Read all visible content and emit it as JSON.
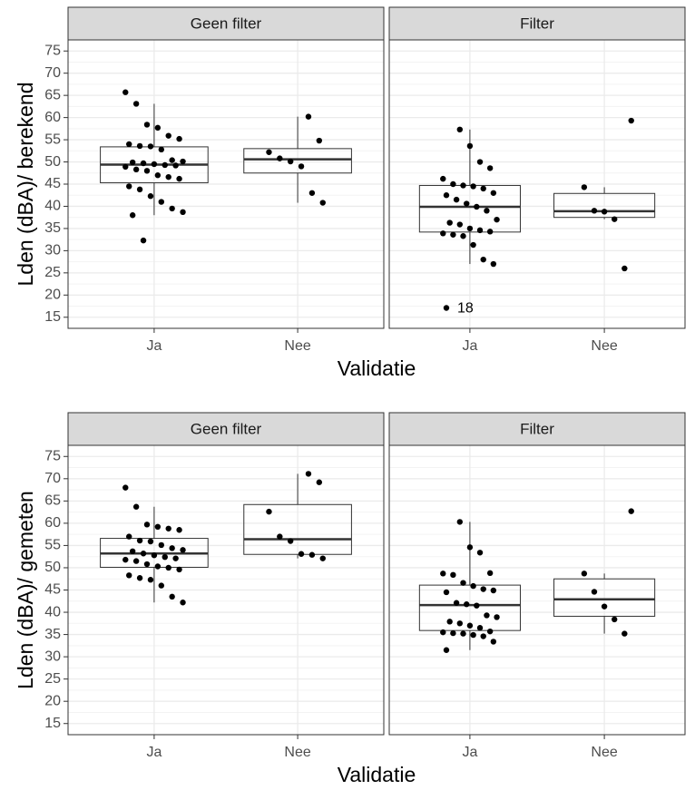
{
  "chart_data": [
    {
      "type": "box",
      "ylabel": "Lden (dBA)/ berekend",
      "xlabel": "Validatie",
      "ylim": [
        12.5,
        77.5
      ],
      "yticks": [
        15,
        20,
        25,
        30,
        35,
        40,
        45,
        50,
        55,
        60,
        65,
        70,
        75
      ],
      "grid": true,
      "facets": [
        {
          "title": "Geen filter",
          "categories": [
            "Ja",
            "Nee"
          ],
          "groups": [
            {
              "q1": 45.3,
              "median": 49.4,
              "q3": 53.4,
              "whisker_low": 38.0,
              "whisker_high": 63.1,
              "values": [
                65.7,
                63.1,
                58.4,
                57.7,
                55.9,
                55.2,
                54.0,
                53.6,
                53.5,
                52.8,
                50.4,
                50.1,
                49.9,
                49.7,
                49.5,
                49.3,
                49.2,
                48.9,
                48.3,
                48.0,
                47.0,
                46.6,
                46.2,
                44.5,
                43.8,
                42.3,
                41.0,
                39.5,
                38.7,
                38.0,
                32.3
              ]
            },
            {
              "q1": 47.5,
              "median": 50.6,
              "q3": 53.0,
              "whisker_low": 40.8,
              "whisker_high": 60.2,
              "values": [
                60.2,
                54.8,
                52.2,
                50.8,
                50.1,
                49.0,
                43.0,
                40.8
              ]
            }
          ]
        },
        {
          "title": "Filter",
          "categories": [
            "Ja",
            "Nee"
          ],
          "groups": [
            {
              "q1": 34.2,
              "median": 39.9,
              "q3": 44.7,
              "whisker_low": 27.0,
              "whisker_high": 57.3,
              "values": [
                57.3,
                53.6,
                50.0,
                48.6,
                46.2,
                45.0,
                44.7,
                44.5,
                44.0,
                43.0,
                42.5,
                41.5,
                40.6,
                39.9,
                39.0,
                37.0,
                36.3,
                35.9,
                35.0,
                34.6,
                34.3,
                33.9,
                33.6,
                33.3,
                31.3,
                28.0,
                27.0,
                17.1
              ],
              "point_labels": {
                "27": "18"
              }
            },
            {
              "q1": 37.5,
              "median": 38.9,
              "q3": 42.9,
              "whisker_low": 37.1,
              "whisker_high": 44.3,
              "values": [
                59.3,
                44.3,
                39.0,
                38.8,
                37.1,
                26.0
              ]
            }
          ]
        }
      ]
    },
    {
      "type": "box",
      "ylabel": "Lden (dBA)/ gemeten",
      "xlabel": "Validatie",
      "ylim": [
        12.5,
        77.5
      ],
      "yticks": [
        15,
        20,
        25,
        30,
        35,
        40,
        45,
        50,
        55,
        60,
        65,
        70,
        75
      ],
      "grid": true,
      "facets": [
        {
          "title": "Geen filter",
          "categories": [
            "Ja",
            "Nee"
          ],
          "groups": [
            {
              "q1": 50.1,
              "median": 53.2,
              "q3": 56.6,
              "whisker_low": 42.2,
              "whisker_high": 63.7,
              "values": [
                68.0,
                63.7,
                59.7,
                59.2,
                58.8,
                58.5,
                57.0,
                56.1,
                55.9,
                55.1,
                54.4,
                54.0,
                53.7,
                53.2,
                52.8,
                52.4,
                52.1,
                51.8,
                51.5,
                50.8,
                50.3,
                50.0,
                49.6,
                48.3,
                47.7,
                47.3,
                46.0,
                43.5,
                42.2
              ]
            },
            {
              "q1": 53.0,
              "median": 56.4,
              "q3": 64.2,
              "whisker_low": 52.1,
              "whisker_high": 71.1,
              "values": [
                71.1,
                69.2,
                62.6,
                57.0,
                56.0,
                53.1,
                52.9,
                52.1
              ]
            }
          ]
        },
        {
          "title": "Filter",
          "categories": [
            "Ja",
            "Nee"
          ],
          "groups": [
            {
              "q1": 35.9,
              "median": 41.6,
              "q3": 46.1,
              "whisker_low": 31.5,
              "whisker_high": 60.3,
              "values": [
                60.3,
                54.6,
                53.4,
                48.8,
                48.7,
                48.4,
                46.6,
                45.9,
                45.2,
                44.9,
                44.5,
                42.1,
                41.8,
                41.5,
                39.3,
                38.9,
                37.9,
                37.5,
                37.0,
                36.5,
                35.7,
                35.5,
                35.3,
                35.2,
                34.9,
                34.6,
                33.4,
                31.5
              ]
            },
            {
              "q1": 39.1,
              "median": 42.9,
              "q3": 47.5,
              "whisker_low": 35.2,
              "whisker_high": 48.7,
              "values": [
                62.7,
                48.7,
                44.6,
                41.3,
                38.4,
                35.2
              ]
            }
          ]
        }
      ]
    }
  ]
}
